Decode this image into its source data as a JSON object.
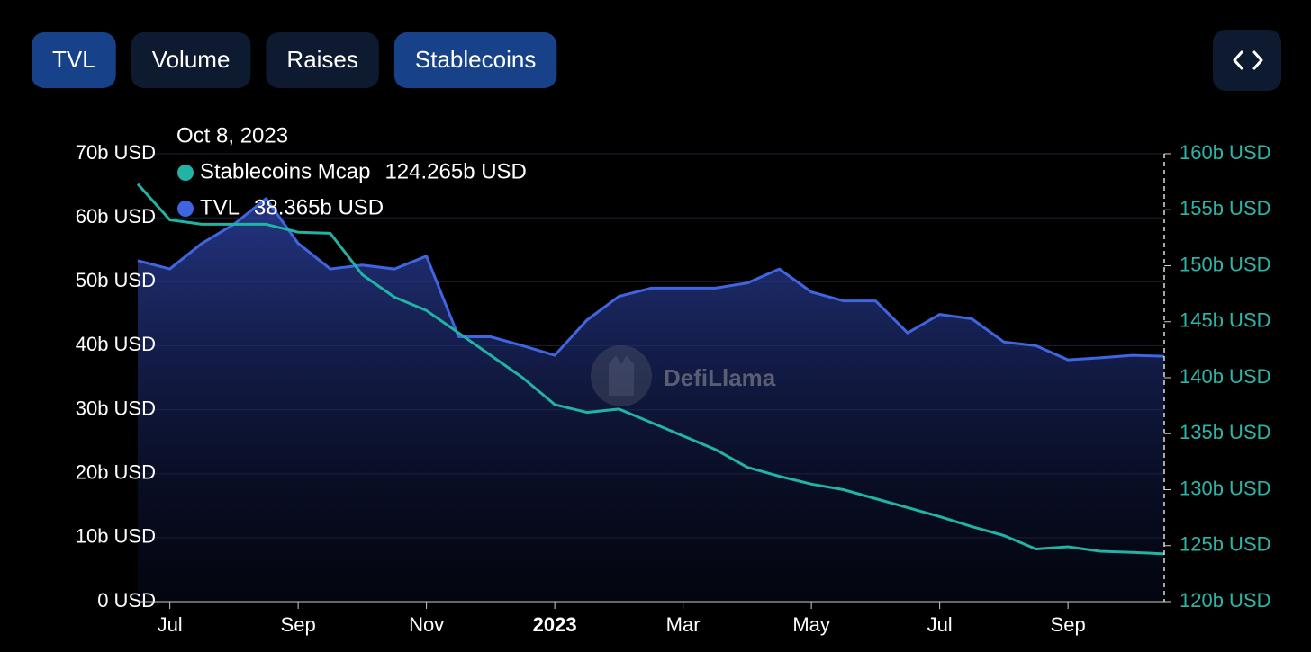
{
  "tabs": [
    {
      "label": "TVL",
      "active": true
    },
    {
      "label": "Volume",
      "active": false
    },
    {
      "label": "Raises",
      "active": false
    },
    {
      "label": "Stablecoins",
      "active": true
    }
  ],
  "chart_data": {
    "type": "line",
    "watermark": "DefiLlama",
    "tooltip": {
      "date": "Oct 8, 2023",
      "values": [
        "124.265b USD",
        "38.365b USD"
      ]
    },
    "categories": [
      null,
      "Jul",
      null,
      null,
      null,
      "Sep",
      null,
      null,
      null,
      "Nov",
      null,
      null,
      null,
      "2023",
      null,
      null,
      null,
      "Mar",
      null,
      null,
      null,
      "May",
      null,
      null,
      null,
      "Jul",
      null,
      null,
      null,
      "Sep",
      null,
      null,
      null
    ],
    "series": [
      {
        "name": "Stablecoins Mcap",
        "color": "#21b3a4",
        "axis": "y2",
        "values": [
          157.3,
          154.1,
          153.7,
          153.7,
          153.7,
          153,
          152.9,
          149.2,
          147.2,
          146,
          144,
          142,
          140,
          137.6,
          136.9,
          137.2,
          136,
          134.8,
          133.6,
          132,
          131.2,
          130.5,
          130,
          129.2,
          128.4,
          127.6,
          126.7,
          125.9,
          124.7,
          124.9,
          124.5,
          124.4,
          124.265
        ]
      },
      {
        "name": "TVL",
        "color": "#3f66e0",
        "axis": "y",
        "values": [
          53.3,
          52,
          56,
          59,
          63,
          56,
          52,
          52.6,
          52,
          54,
          41.4,
          41.4,
          40,
          38.5,
          44,
          47.7,
          49,
          49,
          49,
          49.8,
          52,
          48.4,
          47,
          47,
          42,
          44.9,
          44.2,
          40.6,
          40,
          37.8,
          38.1,
          38.5,
          38.365
        ]
      }
    ],
    "ylim": [
      0,
      70
    ],
    "yticks": [
      {
        "value": 0,
        "label": "0 USD"
      },
      {
        "value": 10,
        "label": "10b USD"
      },
      {
        "value": 20,
        "label": "20b USD"
      },
      {
        "value": 30,
        "label": "30b USD"
      },
      {
        "value": 40,
        "label": "40b USD"
      },
      {
        "value": 50,
        "label": "50b USD"
      },
      {
        "value": 60,
        "label": "60b USD"
      },
      {
        "value": 70,
        "label": "70b USD"
      }
    ],
    "y2lim": [
      120,
      160
    ],
    "y2ticks": [
      {
        "value": 120,
        "label": "120b USD"
      },
      {
        "value": 125,
        "label": "125b USD"
      },
      {
        "value": 130,
        "label": "130b USD"
      },
      {
        "value": 135,
        "label": "135b USD"
      },
      {
        "value": 140,
        "label": "140b USD"
      },
      {
        "value": 145,
        "label": "145b USD"
      },
      {
        "value": 150,
        "label": "150b USD"
      },
      {
        "value": 155,
        "label": "155b USD"
      },
      {
        "value": 160,
        "label": "160b USD"
      }
    ],
    "grid": true
  }
}
